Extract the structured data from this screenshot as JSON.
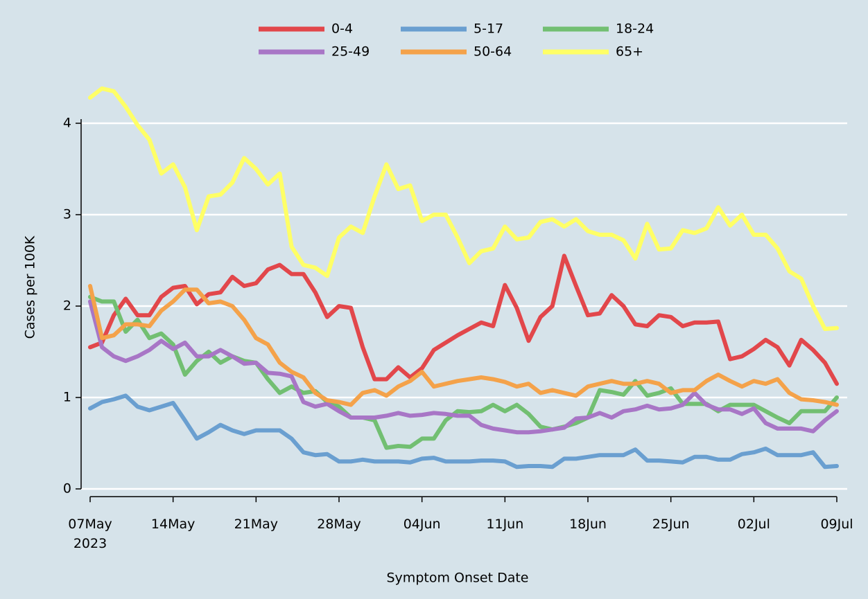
{
  "chart_data": {
    "type": "line",
    "x_label": "Symptom Onset Date",
    "y_label": "Cases per 100K",
    "x": [
      "2023-05-07",
      "2023-05-08",
      "2023-05-09",
      "2023-05-10",
      "2023-05-11",
      "2023-05-12",
      "2023-05-13",
      "2023-05-14",
      "2023-05-15",
      "2023-05-16",
      "2023-05-17",
      "2023-05-18",
      "2023-05-19",
      "2023-05-20",
      "2023-05-21",
      "2023-05-22",
      "2023-05-23",
      "2023-05-24",
      "2023-05-25",
      "2023-05-26",
      "2023-05-27",
      "2023-05-28",
      "2023-05-29",
      "2023-05-30",
      "2023-05-31",
      "2023-06-01",
      "2023-06-02",
      "2023-06-03",
      "2023-06-04",
      "2023-06-05",
      "2023-06-06",
      "2023-06-07",
      "2023-06-08",
      "2023-06-09",
      "2023-06-10",
      "2023-06-11",
      "2023-06-12",
      "2023-06-13",
      "2023-06-14",
      "2023-06-15",
      "2023-06-16",
      "2023-06-17",
      "2023-06-18",
      "2023-06-19",
      "2023-06-20",
      "2023-06-21",
      "2023-06-22",
      "2023-06-23",
      "2023-06-24",
      "2023-06-25",
      "2023-06-26",
      "2023-06-27",
      "2023-06-28",
      "2023-06-29",
      "2023-06-30",
      "2023-07-01",
      "2023-07-02",
      "2023-07-03",
      "2023-07-04",
      "2023-07-05",
      "2023-07-06",
      "2023-07-07",
      "2023-07-08",
      "2023-07-09"
    ],
    "series": [
      {
        "name": "0-4",
        "color": "#e2474b",
        "values": [
          1.55,
          1.6,
          1.9,
          2.08,
          1.9,
          1.9,
          2.1,
          2.2,
          2.22,
          2.02,
          2.13,
          2.15,
          2.32,
          2.22,
          2.25,
          2.4,
          2.45,
          2.35,
          2.35,
          2.15,
          1.88,
          2.0,
          1.98,
          1.55,
          1.2,
          1.2,
          1.33,
          1.22,
          1.32,
          1.52,
          1.6,
          1.68,
          1.75,
          1.82,
          1.78,
          2.23,
          1.98,
          1.62,
          1.88,
          2.0,
          2.55,
          2.22,
          1.9,
          1.92,
          2.12,
          2.0,
          1.8,
          1.78,
          1.9,
          1.88,
          1.78,
          1.82,
          1.82,
          1.83,
          1.42,
          1.45,
          1.53,
          1.63,
          1.55,
          1.35,
          1.63,
          1.52,
          1.38,
          1.15
        ]
      },
      {
        "name": "5-17",
        "color": "#6a9fd0",
        "values": [
          0.88,
          0.95,
          0.98,
          1.02,
          0.9,
          0.86,
          0.9,
          0.94,
          0.75,
          0.55,
          0.62,
          0.7,
          0.64,
          0.6,
          0.64,
          0.64,
          0.64,
          0.55,
          0.4,
          0.37,
          0.38,
          0.3,
          0.3,
          0.32,
          0.3,
          0.3,
          0.3,
          0.29,
          0.33,
          0.34,
          0.3,
          0.3,
          0.3,
          0.31,
          0.31,
          0.3,
          0.24,
          0.25,
          0.25,
          0.24,
          0.33,
          0.33,
          0.35,
          0.37,
          0.37,
          0.37,
          0.43,
          0.31,
          0.31,
          0.3,
          0.29,
          0.35,
          0.35,
          0.32,
          0.32,
          0.38,
          0.4,
          0.44,
          0.37,
          0.37,
          0.37,
          0.4,
          0.24,
          0.25
        ]
      },
      {
        "name": "18-24",
        "color": "#72bf72",
        "values": [
          2.1,
          2.05,
          2.05,
          1.72,
          1.85,
          1.65,
          1.7,
          1.58,
          1.25,
          1.4,
          1.5,
          1.38,
          1.45,
          1.4,
          1.38,
          1.2,
          1.05,
          1.12,
          1.05,
          1.07,
          0.95,
          0.9,
          0.78,
          0.78,
          0.75,
          0.45,
          0.47,
          0.46,
          0.55,
          0.55,
          0.75,
          0.85,
          0.84,
          0.85,
          0.92,
          0.85,
          0.92,
          0.82,
          0.68,
          0.65,
          0.68,
          0.72,
          0.78,
          1.08,
          1.06,
          1.03,
          1.18,
          1.02,
          1.05,
          1.1,
          0.93,
          0.93,
          0.93,
          0.85,
          0.92,
          0.92,
          0.92,
          0.85,
          0.78,
          0.72,
          0.85,
          0.85,
          0.85,
          1.0
        ]
      },
      {
        "name": "25-49",
        "color": "#a876c6",
        "values": [
          2.05,
          1.55,
          1.45,
          1.4,
          1.45,
          1.52,
          1.62,
          1.53,
          1.6,
          1.45,
          1.45,
          1.52,
          1.45,
          1.37,
          1.38,
          1.27,
          1.26,
          1.23,
          0.95,
          0.9,
          0.93,
          0.85,
          0.78,
          0.78,
          0.78,
          0.8,
          0.83,
          0.8,
          0.81,
          0.83,
          0.82,
          0.8,
          0.8,
          0.7,
          0.66,
          0.64,
          0.62,
          0.62,
          0.63,
          0.65,
          0.67,
          0.77,
          0.78,
          0.83,
          0.78,
          0.85,
          0.87,
          0.91,
          0.87,
          0.88,
          0.92,
          1.05,
          0.92,
          0.87,
          0.87,
          0.82,
          0.88,
          0.72,
          0.66,
          0.66,
          0.66,
          0.63,
          0.75,
          0.85
        ]
      },
      {
        "name": "50-64",
        "color": "#f4a24a",
        "values": [
          2.22,
          1.65,
          1.68,
          1.8,
          1.8,
          1.78,
          1.95,
          2.05,
          2.18,
          2.18,
          2.03,
          2.05,
          2.0,
          1.85,
          1.65,
          1.58,
          1.38,
          1.28,
          1.22,
          1.05,
          0.97,
          0.95,
          0.92,
          1.05,
          1.08,
          1.02,
          1.12,
          1.18,
          1.28,
          1.12,
          1.15,
          1.18,
          1.2,
          1.22,
          1.2,
          1.17,
          1.12,
          1.15,
          1.05,
          1.08,
          1.05,
          1.02,
          1.12,
          1.15,
          1.18,
          1.15,
          1.15,
          1.18,
          1.15,
          1.05,
          1.08,
          1.08,
          1.18,
          1.25,
          1.18,
          1.12,
          1.18,
          1.15,
          1.2,
          1.05,
          0.98,
          0.97,
          0.95,
          0.92
        ]
      },
      {
        "name": "65+",
        "color": "#ffff66",
        "values": [
          4.28,
          4.38,
          4.35,
          4.18,
          3.98,
          3.82,
          3.45,
          3.55,
          3.3,
          2.83,
          3.2,
          3.22,
          3.35,
          3.62,
          3.5,
          3.33,
          3.45,
          2.65,
          2.45,
          2.42,
          2.33,
          2.75,
          2.87,
          2.8,
          3.2,
          3.55,
          3.28,
          3.32,
          2.93,
          3.0,
          3.0,
          2.75,
          2.47,
          2.6,
          2.63,
          2.87,
          2.73,
          2.75,
          2.92,
          2.95,
          2.87,
          2.95,
          2.82,
          2.78,
          2.78,
          2.72,
          2.52,
          2.9,
          2.62,
          2.63,
          2.83,
          2.8,
          2.85,
          3.08,
          2.88,
          3.0,
          2.78,
          2.78,
          2.63,
          2.38,
          2.3,
          2.0,
          1.75,
          1.76
        ]
      }
    ],
    "xlim": [
      "2023-05-07",
      "2023-07-09"
    ],
    "xticks": [
      {
        "value": "2023-05-07",
        "label": "07May\n2023"
      },
      {
        "value": "2023-05-14",
        "label": "14May"
      },
      {
        "value": "2023-05-21",
        "label": "21May"
      },
      {
        "value": "2023-05-28",
        "label": "28May"
      },
      {
        "value": "2023-06-04",
        "label": "04Jun"
      },
      {
        "value": "2023-06-11",
        "label": "11Jun"
      },
      {
        "value": "2023-06-18",
        "label": "18Jun"
      },
      {
        "value": "2023-06-25",
        "label": "25Jun"
      },
      {
        "value": "2023-07-02",
        "label": "02Jul"
      },
      {
        "value": "2023-07-09",
        "label": "09Jul"
      }
    ],
    "ylim": [
      -0.1,
      4.5
    ],
    "yticks": [
      0,
      1,
      2,
      3,
      4
    ],
    "grid": true,
    "legend": "top"
  }
}
